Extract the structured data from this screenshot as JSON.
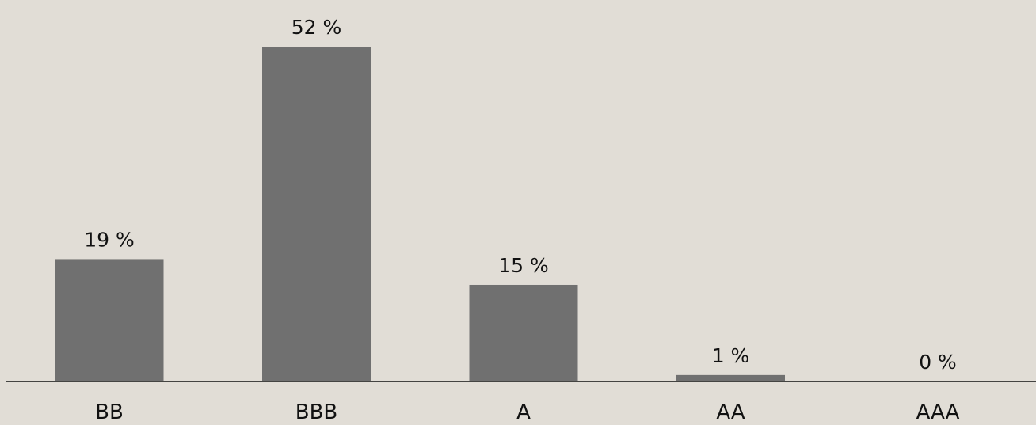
{
  "chart_data": {
    "type": "bar",
    "title": "",
    "xlabel": "",
    "ylabel": "",
    "categories": [
      "BB",
      "BBB",
      "A",
      "AA",
      "AAA"
    ],
    "values": [
      19,
      52,
      15,
      1,
      0
    ],
    "value_labels": [
      "19 %",
      "52 %",
      "15 %",
      "1 %",
      "0 %"
    ],
    "unit": "%",
    "ylim": [
      0,
      52
    ],
    "grid": false,
    "legend": "none",
    "colors": {
      "background": "#e1ddd6",
      "bar": "#707070",
      "axis": "#111111",
      "text": "#111111"
    }
  }
}
